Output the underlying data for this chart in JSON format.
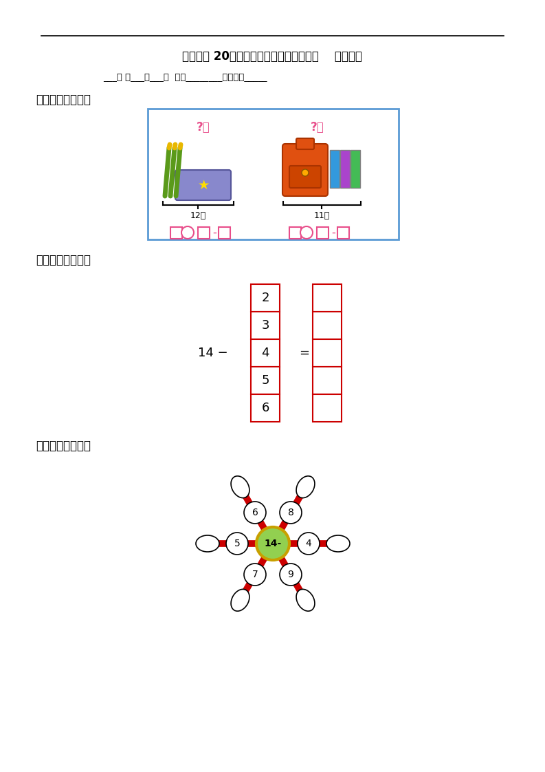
{
  "title": "第七单元 20以内数的进位加法和退位减法    信息窗五",
  "subtitle": "___年 级___班___组  姓名________教师评价_____",
  "section1": "一、【基础平台】",
  "section2": "二、【能力检测】",
  "section3": "三、【拓展应用】",
  "box1_label": "12枝",
  "box2_label": "11本",
  "subtraction_numbers": [
    2,
    3,
    4,
    5,
    6
  ],
  "subtraction_base": "14 −",
  "equals": "=",
  "flower_center": "14-",
  "flower_petals": [
    6,
    8,
    5,
    4,
    7,
    9
  ],
  "bg_color": "#ffffff",
  "border_color": "#5b9bd5",
  "red_color": "#cc0000",
  "pink_color": "#e84d8a",
  "green_center": "#92d050",
  "gold_border": "#c8a000"
}
